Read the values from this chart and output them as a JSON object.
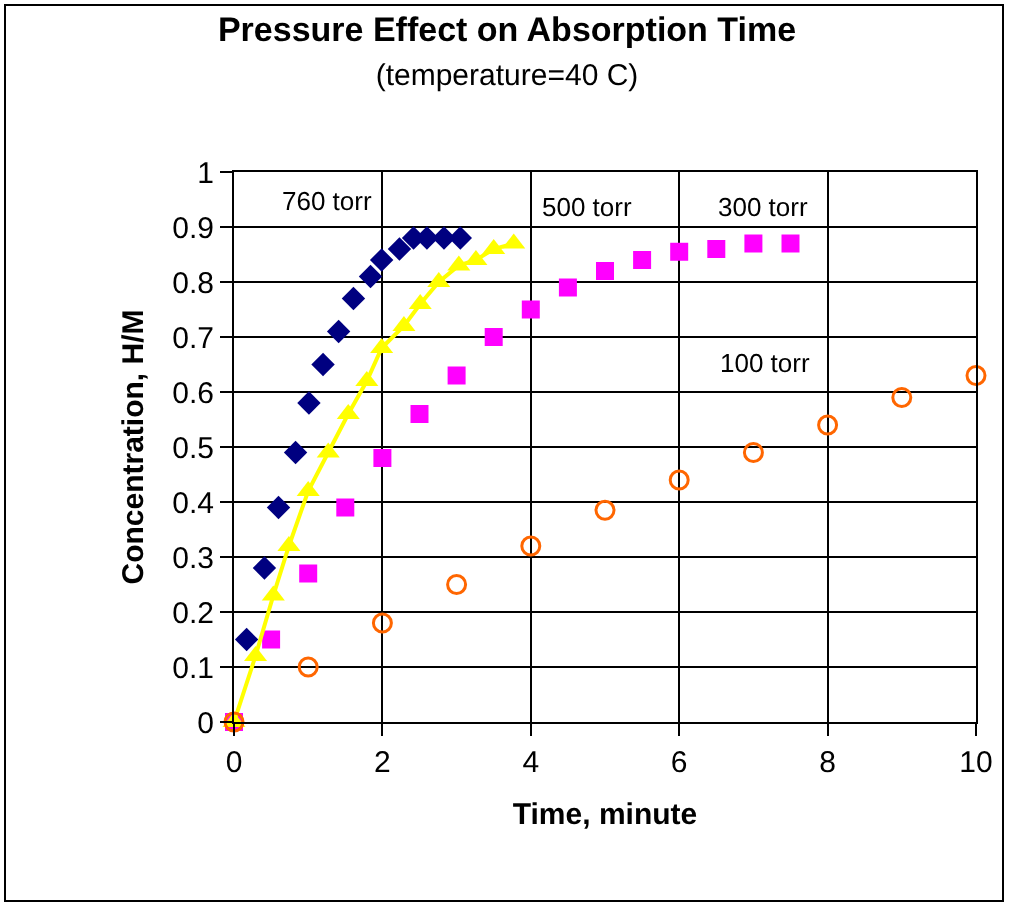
{
  "chart_data": {
    "type": "scatter",
    "title": "Pressure Effect on Absorption Time",
    "subtitle": "(temperature=40 C)",
    "xlabel": "Time, minute",
    "ylabel": "Concentration, H/M",
    "xlim": [
      0,
      10
    ],
    "xticks": [
      0,
      2,
      4,
      6,
      8,
      10
    ],
    "ylim": [
      0,
      1
    ],
    "yticks": [
      0,
      0.1,
      0.2,
      0.3,
      0.4,
      0.5,
      0.6,
      0.7,
      0.8,
      0.9,
      1
    ],
    "grid": true,
    "legend": false,
    "series": [
      {
        "name": "760 torr",
        "color": "#000080",
        "marker": "diamond",
        "x": [
          0.17,
          0.41,
          0.6,
          0.83,
          1.01,
          1.2,
          1.41,
          1.61,
          1.84,
          1.99,
          2.23,
          2.42,
          2.6,
          2.83,
          3.05
        ],
        "values": [
          0.15,
          0.28,
          0.39,
          0.49,
          0.58,
          0.65,
          0.71,
          0.77,
          0.81,
          0.84,
          0.86,
          0.88,
          0.88,
          0.88,
          0.88
        ]
      },
      {
        "name": "500 torr",
        "type": "line",
        "color": "#ffff00",
        "marker": "triangle",
        "line_style": "solid",
        "x": [
          0,
          0.29,
          0.53,
          0.74,
          1.0,
          1.27,
          1.54,
          1.79,
          1.99,
          2.29,
          2.51,
          2.76,
          3.03,
          3.26,
          3.5,
          3.77
        ],
        "values": [
          0,
          0.12,
          0.23,
          0.32,
          0.42,
          0.49,
          0.56,
          0.62,
          0.68,
          0.72,
          0.76,
          0.8,
          0.83,
          0.84,
          0.86,
          0.87
        ]
      },
      {
        "name": "300 torr",
        "color": "#ff00ff",
        "marker": "square",
        "x": [
          0,
          0.5,
          1,
          1.5,
          2,
          2.5,
          3,
          3.5,
          4,
          4.5,
          5,
          5.5,
          6,
          6.5,
          7,
          7.5
        ],
        "values": [
          0,
          0.15,
          0.27,
          0.39,
          0.48,
          0.56,
          0.63,
          0.7,
          0.75,
          0.79,
          0.82,
          0.84,
          0.855,
          0.86,
          0.87,
          0.87
        ]
      },
      {
        "name": "100 torr",
        "color": "#ff6600",
        "marker": "circle",
        "x": [
          0,
          1,
          2,
          3,
          4,
          5,
          6,
          7,
          8,
          9,
          10
        ],
        "values": [
          0,
          0.1,
          0.18,
          0.25,
          0.32,
          0.385,
          0.44,
          0.49,
          0.54,
          0.59,
          0.63
        ]
      }
    ]
  }
}
